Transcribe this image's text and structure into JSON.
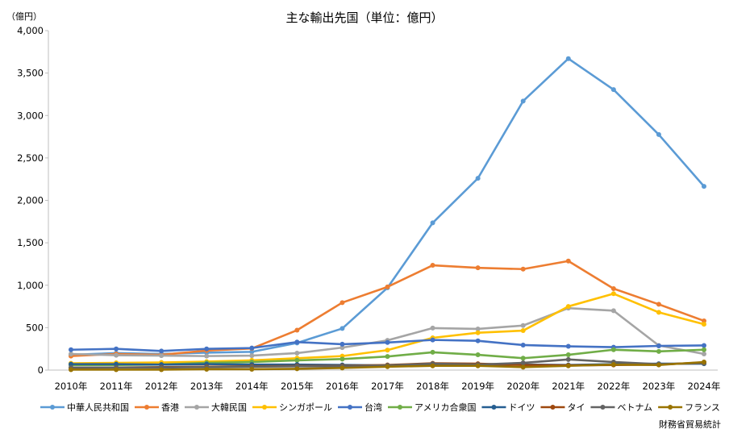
{
  "chart_data": {
    "type": "line",
    "title": "主な輸出先国（単位：億円）",
    "unit_label": "（億円）",
    "source": "財務省貿易統計",
    "ylim": [
      0,
      4000
    ],
    "yticks": [
      "0",
      "500",
      "1,000",
      "1,500",
      "2,000",
      "2,500",
      "3,000",
      "3,500",
      "4,000"
    ],
    "ytick_values": [
      0,
      500,
      1000,
      1500,
      2000,
      2500,
      3000,
      3500,
      4000
    ],
    "categories": [
      "2010年",
      "2011年",
      "2012年",
      "2013年",
      "2014年",
      "2015年",
      "2016年",
      "2017年",
      "2018年",
      "2019年",
      "2020年",
      "2021年",
      "2022年",
      "2023年",
      "2024年"
    ],
    "grid": false,
    "legend_position": "bottom",
    "series": [
      {
        "name": "中華人民共和国",
        "color": "#5b9bd5",
        "values": [
          180,
          200,
          190,
          205,
          215,
          320,
          490,
          970,
          1735,
          2260,
          3170,
          3670,
          3305,
          2775,
          2165
        ]
      },
      {
        "name": "香港",
        "color": "#ed7d31",
        "values": [
          165,
          190,
          180,
          230,
          255,
          470,
          795,
          980,
          1235,
          1205,
          1190,
          1285,
          960,
          775,
          580
        ]
      },
      {
        "name": "大韓民国",
        "color": "#a5a5a5",
        "values": [
          190,
          175,
          170,
          165,
          170,
          200,
          265,
          350,
          495,
          485,
          525,
          730,
          700,
          290,
          190
        ]
      },
      {
        "name": "シンガポール",
        "color": "#ffc000",
        "values": [
          80,
          85,
          90,
          100,
          115,
          140,
          165,
          235,
          380,
          440,
          465,
          750,
          900,
          680,
          540
        ]
      },
      {
        "name": "台湾",
        "color": "#4472c4",
        "values": [
          240,
          250,
          225,
          250,
          260,
          330,
          305,
          325,
          355,
          345,
          295,
          280,
          270,
          285,
          290
        ]
      },
      {
        "name": "アメリカ合衆国",
        "color": "#70ad47",
        "values": [
          60,
          60,
          65,
          85,
          95,
          115,
          130,
          160,
          210,
          180,
          140,
          180,
          240,
          220,
          240
        ]
      },
      {
        "name": "ドイツ",
        "color": "#255e91",
        "values": [
          70,
          70,
          65,
          70,
          65,
          65,
          60,
          55,
          60,
          60,
          65,
          60,
          70,
          75,
          75
        ]
      },
      {
        "name": "タイ",
        "color": "#9e480e",
        "values": [
          25,
          30,
          35,
          40,
          45,
          50,
          50,
          60,
          80,
          75,
          60,
          55,
          60,
          65,
          90
        ]
      },
      {
        "name": "ベトナム",
        "color": "#636363",
        "values": [
          30,
          30,
          30,
          35,
          40,
          45,
          45,
          55,
          75,
          65,
          85,
          125,
          95,
          70,
          80
        ]
      },
      {
        "name": "フランス",
        "color": "#997300",
        "values": [
          5,
          5,
          5,
          10,
          10,
          15,
          25,
          40,
          50,
          50,
          35,
          50,
          65,
          60,
          95
        ]
      }
    ]
  }
}
